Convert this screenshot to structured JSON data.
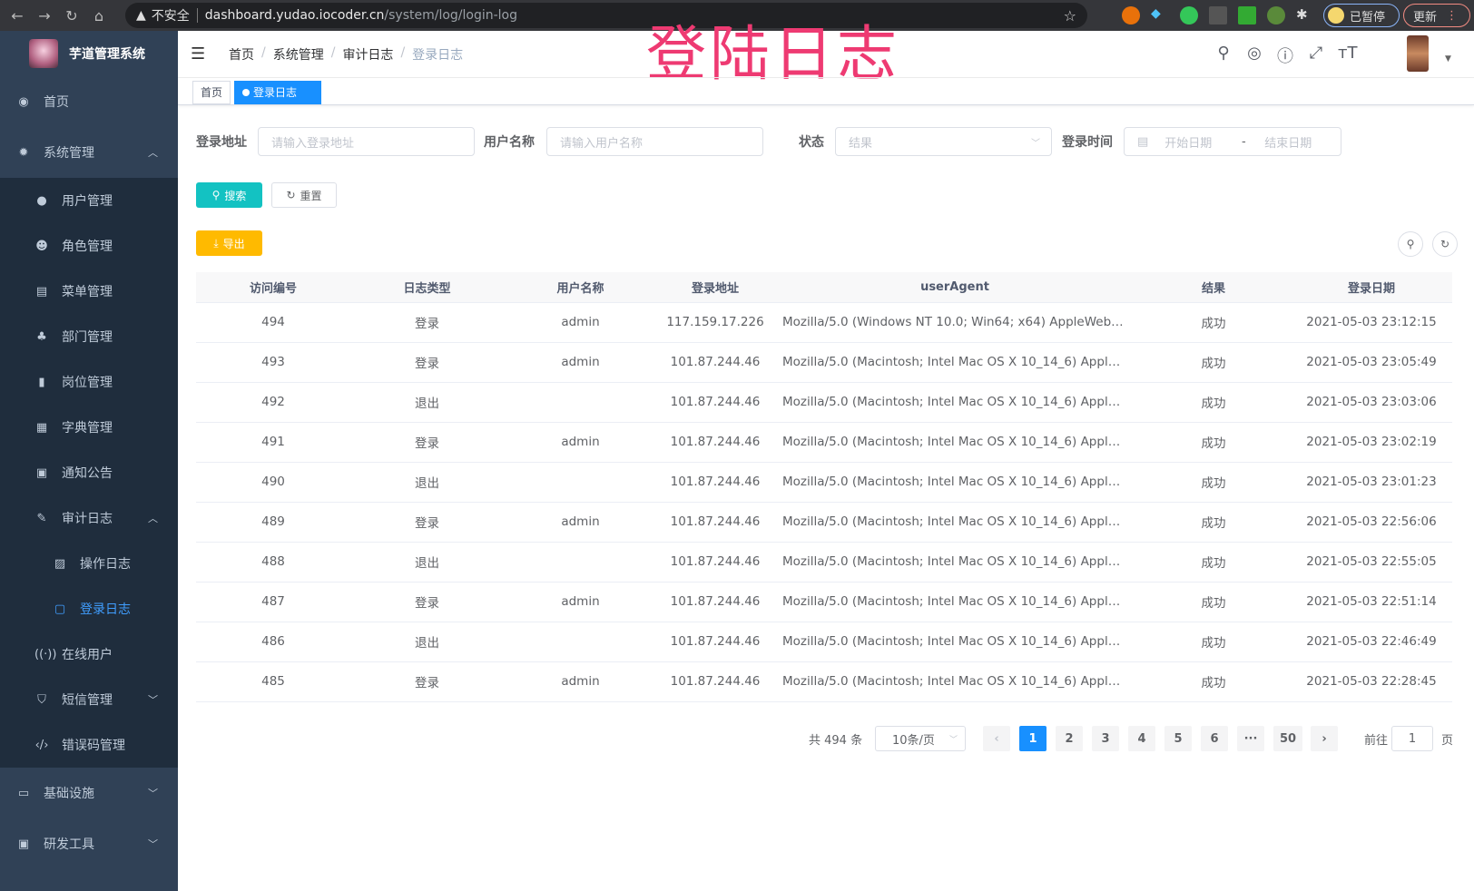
{
  "browser": {
    "security": "不安全",
    "host": "dashboard.yudao.iocoder.cn",
    "path": "/system/log/login-log",
    "profile": "已暂停",
    "update": "更新"
  },
  "overlay_title": "登陆日志",
  "sidebar": {
    "app_name": "芋道管理系统",
    "items": [
      {
        "label": "首页",
        "icon": "dashboard-icon"
      },
      {
        "label": "系统管理",
        "icon": "gear-icon",
        "expanded": true,
        "children": [
          {
            "label": "用户管理",
            "icon": "user-icon"
          },
          {
            "label": "角色管理",
            "icon": "peoples-icon"
          },
          {
            "label": "菜单管理",
            "icon": "tree-table-icon"
          },
          {
            "label": "部门管理",
            "icon": "tree-icon"
          },
          {
            "label": "岗位管理",
            "icon": "post-icon"
          },
          {
            "label": "字典管理",
            "icon": "dict-icon"
          },
          {
            "label": "通知公告",
            "icon": "message-icon"
          },
          {
            "label": "审计日志",
            "icon": "log-icon",
            "expanded": true,
            "children": [
              {
                "label": "操作日志",
                "icon": "form-icon"
              },
              {
                "label": "登录日志",
                "icon": "logininfor-icon",
                "active": true
              }
            ]
          },
          {
            "label": "在线用户",
            "icon": "online-icon"
          },
          {
            "label": "短信管理",
            "icon": "shield-icon"
          },
          {
            "label": "错误码管理",
            "icon": "code-icon"
          }
        ]
      },
      {
        "label": "基础设施",
        "icon": "monitor-icon"
      },
      {
        "label": "研发工具",
        "icon": "tool-icon"
      }
    ]
  },
  "breadcrumb": [
    "首页",
    "系统管理",
    "审计日志",
    "登录日志"
  ],
  "tags": [
    {
      "label": "首页"
    },
    {
      "label": "登录日志",
      "close": "×"
    }
  ],
  "filters": {
    "address_label": "登录地址",
    "address_placeholder": "请输入登录地址",
    "username_label": "用户名称",
    "username_placeholder": "请输入用户名称",
    "status_label": "状态",
    "status_placeholder": "结果",
    "time_label": "登录时间",
    "start_placeholder": "开始日期",
    "range_sep": "-",
    "end_placeholder": "结束日期"
  },
  "buttons": {
    "search": "搜索",
    "reset": "重置",
    "export": "导出"
  },
  "colors": {
    "sidebar": "#304156",
    "submenu": "#1f2d3d",
    "primary": "#1890ff",
    "search": "#13c2c2",
    "export": "#ffba00",
    "overlay": "#ee3a72"
  },
  "table": {
    "columns": [
      "访问编号",
      "日志类型",
      "用户名称",
      "登录地址",
      "userAgent",
      "结果",
      "登录日期"
    ],
    "rows": [
      [
        "494",
        "登录",
        "admin",
        "117.159.17.226",
        "Mozilla/5.0 (Windows NT 10.0; Win64; x64) AppleWebKit...",
        "成功",
        "2021-05-03 23:12:15"
      ],
      [
        "493",
        "登录",
        "admin",
        "101.87.244.46",
        "Mozilla/5.0 (Macintosh; Intel Mac OS X 10_14_6) AppleWe...",
        "成功",
        "2021-05-03 23:05:49"
      ],
      [
        "492",
        "退出",
        "",
        "101.87.244.46",
        "Mozilla/5.0 (Macintosh; Intel Mac OS X 10_14_6) AppleWe...",
        "成功",
        "2021-05-03 23:03:06"
      ],
      [
        "491",
        "登录",
        "admin",
        "101.87.244.46",
        "Mozilla/5.0 (Macintosh; Intel Mac OS X 10_14_6) AppleWe...",
        "成功",
        "2021-05-03 23:02:19"
      ],
      [
        "490",
        "退出",
        "",
        "101.87.244.46",
        "Mozilla/5.0 (Macintosh; Intel Mac OS X 10_14_6) AppleWe...",
        "成功",
        "2021-05-03 23:01:23"
      ],
      [
        "489",
        "登录",
        "admin",
        "101.87.244.46",
        "Mozilla/5.0 (Macintosh; Intel Mac OS X 10_14_6) AppleWe...",
        "成功",
        "2021-05-03 22:56:06"
      ],
      [
        "488",
        "退出",
        "",
        "101.87.244.46",
        "Mozilla/5.0 (Macintosh; Intel Mac OS X 10_14_6) AppleWe...",
        "成功",
        "2021-05-03 22:55:05"
      ],
      [
        "487",
        "登录",
        "admin",
        "101.87.244.46",
        "Mozilla/5.0 (Macintosh; Intel Mac OS X 10_14_6) AppleWe...",
        "成功",
        "2021-05-03 22:51:14"
      ],
      [
        "486",
        "退出",
        "",
        "101.87.244.46",
        "Mozilla/5.0 (Macintosh; Intel Mac OS X 10_14_6) AppleWe...",
        "成功",
        "2021-05-03 22:46:49"
      ],
      [
        "485",
        "登录",
        "admin",
        "101.87.244.46",
        "Mozilla/5.0 (Macintosh; Intel Mac OS X 10_14_6) AppleWe...",
        "成功",
        "2021-05-03 22:28:45"
      ]
    ]
  },
  "pagination": {
    "total": "共 494 条",
    "page_size": "10条/页",
    "pages": [
      "1",
      "2",
      "3",
      "4",
      "5",
      "6",
      "···",
      "50"
    ],
    "current": "1",
    "prev": "‹",
    "next": "›",
    "goto_label": "前往",
    "goto_value": "1",
    "goto_suffix": "页"
  }
}
